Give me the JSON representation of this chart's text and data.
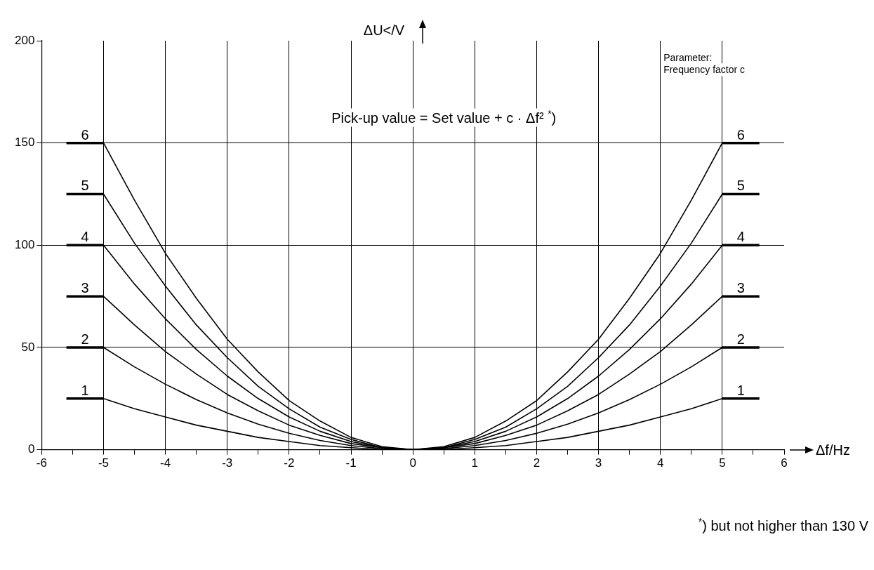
{
  "chart_data": {
    "type": "line",
    "xlabel": "Δf/Hz",
    "ylabel": "ΔU</V",
    "x": [
      -5.6,
      -5,
      -4.5,
      -4,
      -3.5,
      -3,
      -2.5,
      -2,
      -1.5,
      -1,
      -0.5,
      0,
      0.5,
      1,
      1.5,
      2,
      2.5,
      3,
      3.5,
      4,
      4.5,
      5,
      5.6
    ],
    "series": [
      {
        "name": "1",
        "color": "#000000",
        "values": [
          25,
          25,
          20,
          16,
          12,
          9,
          6,
          4,
          2,
          1,
          0,
          0,
          0,
          1,
          2,
          4,
          6,
          9,
          12,
          16,
          20,
          25,
          25
        ]
      },
      {
        "name": "2",
        "color": "#000000",
        "values": [
          50,
          50,
          40.5,
          32,
          24.5,
          18,
          12.5,
          8,
          4.5,
          2,
          0.5,
          0,
          0.5,
          2,
          4.5,
          8,
          12.5,
          18,
          24.5,
          32,
          40.5,
          50,
          50
        ]
      },
      {
        "name": "3",
        "color": "#000000",
        "values": [
          75,
          75,
          61,
          48,
          37,
          27,
          19,
          12,
          7,
          3,
          1,
          0,
          1,
          3,
          7,
          12,
          19,
          27,
          37,
          48,
          61,
          75,
          75
        ]
      },
      {
        "name": "4",
        "color": "#000000",
        "values": [
          100,
          100,
          81,
          64,
          49,
          36,
          25,
          16,
          9,
          4,
          1,
          0,
          1,
          4,
          9,
          16,
          25,
          36,
          49,
          64,
          81,
          100,
          100
        ]
      },
      {
        "name": "5",
        "color": "#000000",
        "values": [
          125,
          125,
          101,
          80,
          61,
          45,
          31,
          20,
          11,
          5,
          1,
          0,
          1,
          5,
          11,
          20,
          31,
          45,
          61,
          80,
          101,
          125,
          125
        ]
      },
      {
        "name": "6",
        "color": "#000000",
        "values": [
          150,
          150,
          122,
          96,
          74,
          54,
          38,
          24,
          14,
          6,
          1.5,
          0,
          1.5,
          6,
          14,
          24,
          38,
          54,
          74,
          96,
          122,
          150,
          150
        ]
      }
    ],
    "xlim": [
      -6,
      6
    ],
    "xticks": [
      -6,
      {
        "value": -5.5,
        "label": null
      },
      -5,
      {
        "value": -4.5,
        "label": null
      },
      -4,
      {
        "value": -3.5,
        "label": null
      },
      -3,
      {
        "value": -2.5,
        "label": null
      },
      -2,
      {
        "value": -1.5,
        "label": null
      },
      -1,
      {
        "value": -0.5,
        "label": null
      },
      0,
      {
        "value": 0.5,
        "label": null
      },
      1,
      {
        "value": 1.5,
        "label": null
      },
      2,
      {
        "value": 2.5,
        "label": null
      },
      3,
      {
        "value": 3.5,
        "label": null
      },
      4,
      {
        "value": 4.5,
        "label": null
      },
      5,
      {
        "value": 5.5,
        "label": null
      },
      6
    ],
    "ylim": [
      0,
      200
    ],
    "yticks": [
      0,
      50,
      100,
      150,
      200
    ],
    "grid": true,
    "legend": false,
    "marker": "none",
    "line_style": "solid",
    "annotations": [
      "Pick-up value = Set value + c · Δf² $^{*}$)",
      "Parameter:\nFrequency factor c",
      "$^{*}$) but not higher than 130 V"
    ]
  }
}
